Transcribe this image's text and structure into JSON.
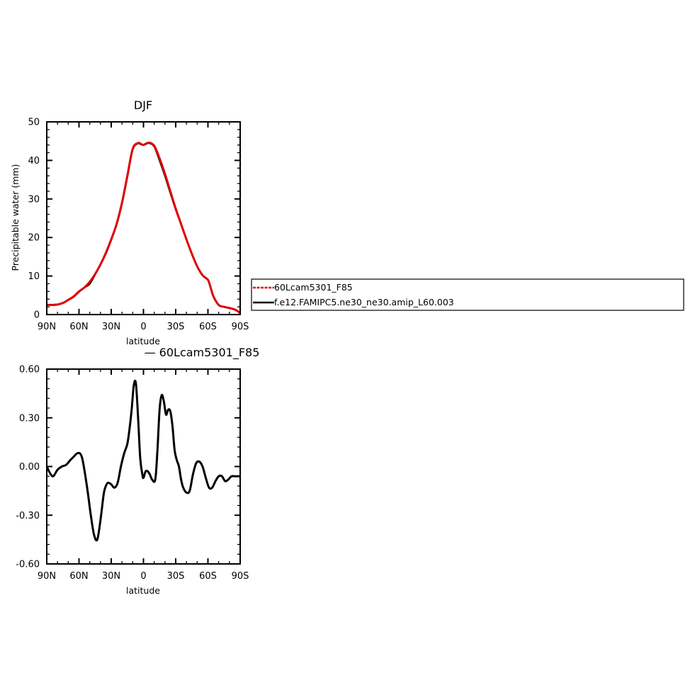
{
  "chart_data": [
    {
      "type": "line",
      "title": "DJF",
      "xlabel": "latitude",
      "ylabel": "Precipitable water (mm)",
      "xlim": [
        90,
        -90
      ],
      "ylim": [
        0,
        50
      ],
      "x_ticks": [
        90,
        60,
        30,
        0,
        -30,
        -60,
        -90
      ],
      "x_tick_labels": [
        "90N",
        "60N",
        "30N",
        "0",
        "30S",
        "60S",
        "90S"
      ],
      "y_ticks": [
        0,
        10,
        20,
        30,
        40,
        50
      ],
      "y_tick_labels": [
        "0",
        "10",
        "20",
        "30",
        "40",
        "50"
      ],
      "legend_position": "right",
      "series": [
        {
          "name": "60Lcam5301_F85",
          "color": "#e00000",
          "x": [
            90,
            85,
            80,
            75,
            70,
            65,
            60,
            55,
            50,
            45,
            40,
            35,
            30,
            25,
            20,
            15,
            10,
            5,
            2,
            0,
            -2,
            -5,
            -10,
            -15,
            -20,
            -25,
            -30,
            -35,
            -40,
            -45,
            -50,
            -55,
            -60,
            -62,
            -65,
            -70,
            -75,
            -80,
            -85,
            -88,
            -90
          ],
          "y": [
            2.5,
            2.5,
            2.6,
            3.0,
            3.8,
            4.7,
            6.0,
            7.0,
            8.5,
            10.5,
            13.0,
            16.0,
            19.5,
            23.5,
            29.0,
            36.0,
            43.0,
            44.5,
            44.2,
            44.0,
            44.3,
            44.6,
            43.8,
            40.5,
            36.5,
            32.0,
            27.5,
            23.5,
            19.5,
            15.8,
            12.5,
            10.2,
            9.0,
            7.5,
            4.8,
            2.5,
            2.0,
            1.7,
            1.3,
            0.8,
            0.3
          ]
        },
        {
          "name": "f.e12.FAMIPC5.ne30_ne30.amip_L60.003",
          "color": "#000000",
          "x": [
            90,
            85,
            80,
            75,
            70,
            65,
            60,
            55,
            50,
            45,
            40,
            35,
            30,
            25,
            20,
            15,
            10,
            5,
            2,
            0,
            -2,
            -5,
            -10,
            -15,
            -20,
            -25,
            -30,
            -35,
            -40,
            -45,
            -50,
            -55,
            -60,
            -62,
            -65,
            -70,
            -75,
            -80,
            -85,
            -88,
            -90
          ],
          "y": [
            2.5,
            2.5,
            2.6,
            3.0,
            3.8,
            4.6,
            5.9,
            7.0,
            8.0,
            10.4,
            13.0,
            15.8,
            19.4,
            23.4,
            28.8,
            35.7,
            42.8,
            44.4,
            44.1,
            44.0,
            44.2,
            44.5,
            43.6,
            40.0,
            36.0,
            31.6,
            27.3,
            23.4,
            19.5,
            15.8,
            12.5,
            10.2,
            9.0,
            7.5,
            4.8,
            2.5,
            2.0,
            1.7,
            1.3,
            0.8,
            0.3
          ]
        }
      ]
    },
    {
      "type": "line",
      "title": "— 60Lcam5301_F85",
      "xlabel": "latitude",
      "ylabel": "",
      "xlim": [
        90,
        -90
      ],
      "ylim": [
        -0.6,
        0.6
      ],
      "x_ticks": [
        90,
        60,
        30,
        0,
        -30,
        -60,
        -90
      ],
      "x_tick_labels": [
        "90N",
        "60N",
        "30N",
        "0",
        "30S",
        "60S",
        "90S"
      ],
      "y_ticks": [
        -0.6,
        -0.3,
        0.0,
        0.3,
        0.6
      ],
      "y_tick_labels": [
        "-0.60",
        "-0.30",
        "0.00",
        "0.30",
        "0.60"
      ],
      "series": [
        {
          "color": "#000000",
          "x": [
            90,
            87,
            84,
            80,
            76,
            72,
            68,
            65,
            62,
            59,
            57,
            55,
            52,
            49,
            46,
            43,
            40,
            37,
            35,
            33,
            30,
            27,
            24,
            21,
            18,
            15,
            13,
            11,
            9,
            7,
            5,
            3,
            1,
            0,
            -2,
            -4,
            -6,
            -8,
            -11,
            -13,
            -15,
            -17,
            -19,
            -21,
            -23,
            -25,
            -27,
            -29,
            -31,
            -33,
            -35,
            -37,
            -40,
            -43,
            -46,
            -49,
            -52,
            -55,
            -58,
            -61,
            -64,
            -67,
            -70,
            -73,
            -76,
            -79,
            -82,
            -85,
            -88,
            -90
          ],
          "y": [
            0.0,
            -0.04,
            -0.06,
            -0.02,
            0.0,
            0.01,
            0.04,
            0.06,
            0.08,
            0.08,
            0.05,
            -0.02,
            -0.15,
            -0.3,
            -0.42,
            -0.45,
            -0.33,
            -0.17,
            -0.12,
            -0.1,
            -0.11,
            -0.13,
            -0.1,
            0.0,
            0.08,
            0.14,
            0.23,
            0.35,
            0.5,
            0.51,
            0.3,
            0.05,
            -0.05,
            -0.07,
            -0.03,
            -0.03,
            -0.05,
            -0.08,
            -0.08,
            0.1,
            0.35,
            0.44,
            0.4,
            0.32,
            0.35,
            0.34,
            0.25,
            0.1,
            0.04,
            0.0,
            -0.08,
            -0.13,
            -0.16,
            -0.15,
            -0.05,
            0.02,
            0.03,
            0.0,
            -0.07,
            -0.13,
            -0.13,
            -0.09,
            -0.06,
            -0.06,
            -0.09,
            -0.08,
            -0.06,
            -0.06,
            -0.06,
            -0.06
          ]
        }
      ]
    }
  ]
}
